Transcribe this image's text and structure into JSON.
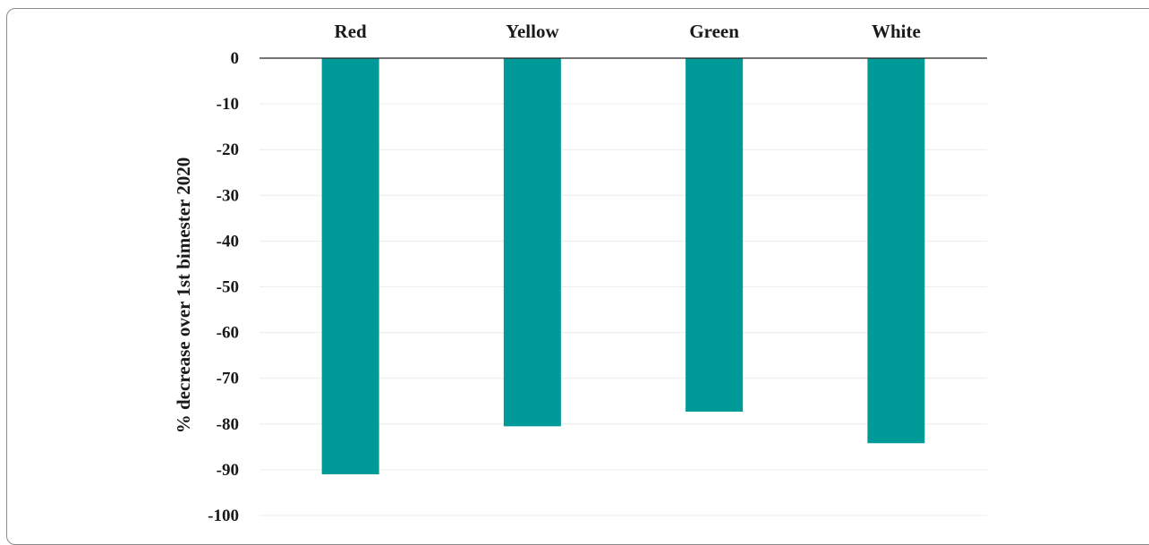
{
  "chart_data": {
    "type": "bar",
    "categories": [
      "Red",
      "Yellow",
      "Green",
      "White"
    ],
    "series": [
      {
        "values": [
          -91,
          -80.5,
          -77.3,
          -84.2
        ]
      }
    ],
    "ylabel": "% decrease over 1st bimester 2020",
    "xlabel": "",
    "ylim": [
      -100,
      0
    ],
    "yticks": [
      0,
      -10,
      -20,
      -30,
      -40,
      -50,
      -60,
      -70,
      -80,
      -90,
      -100
    ],
    "category_axis_position": "top",
    "grid": true,
    "bar_color": "#009b98",
    "grid_color": "#ececec",
    "axis_color": "#222222"
  }
}
